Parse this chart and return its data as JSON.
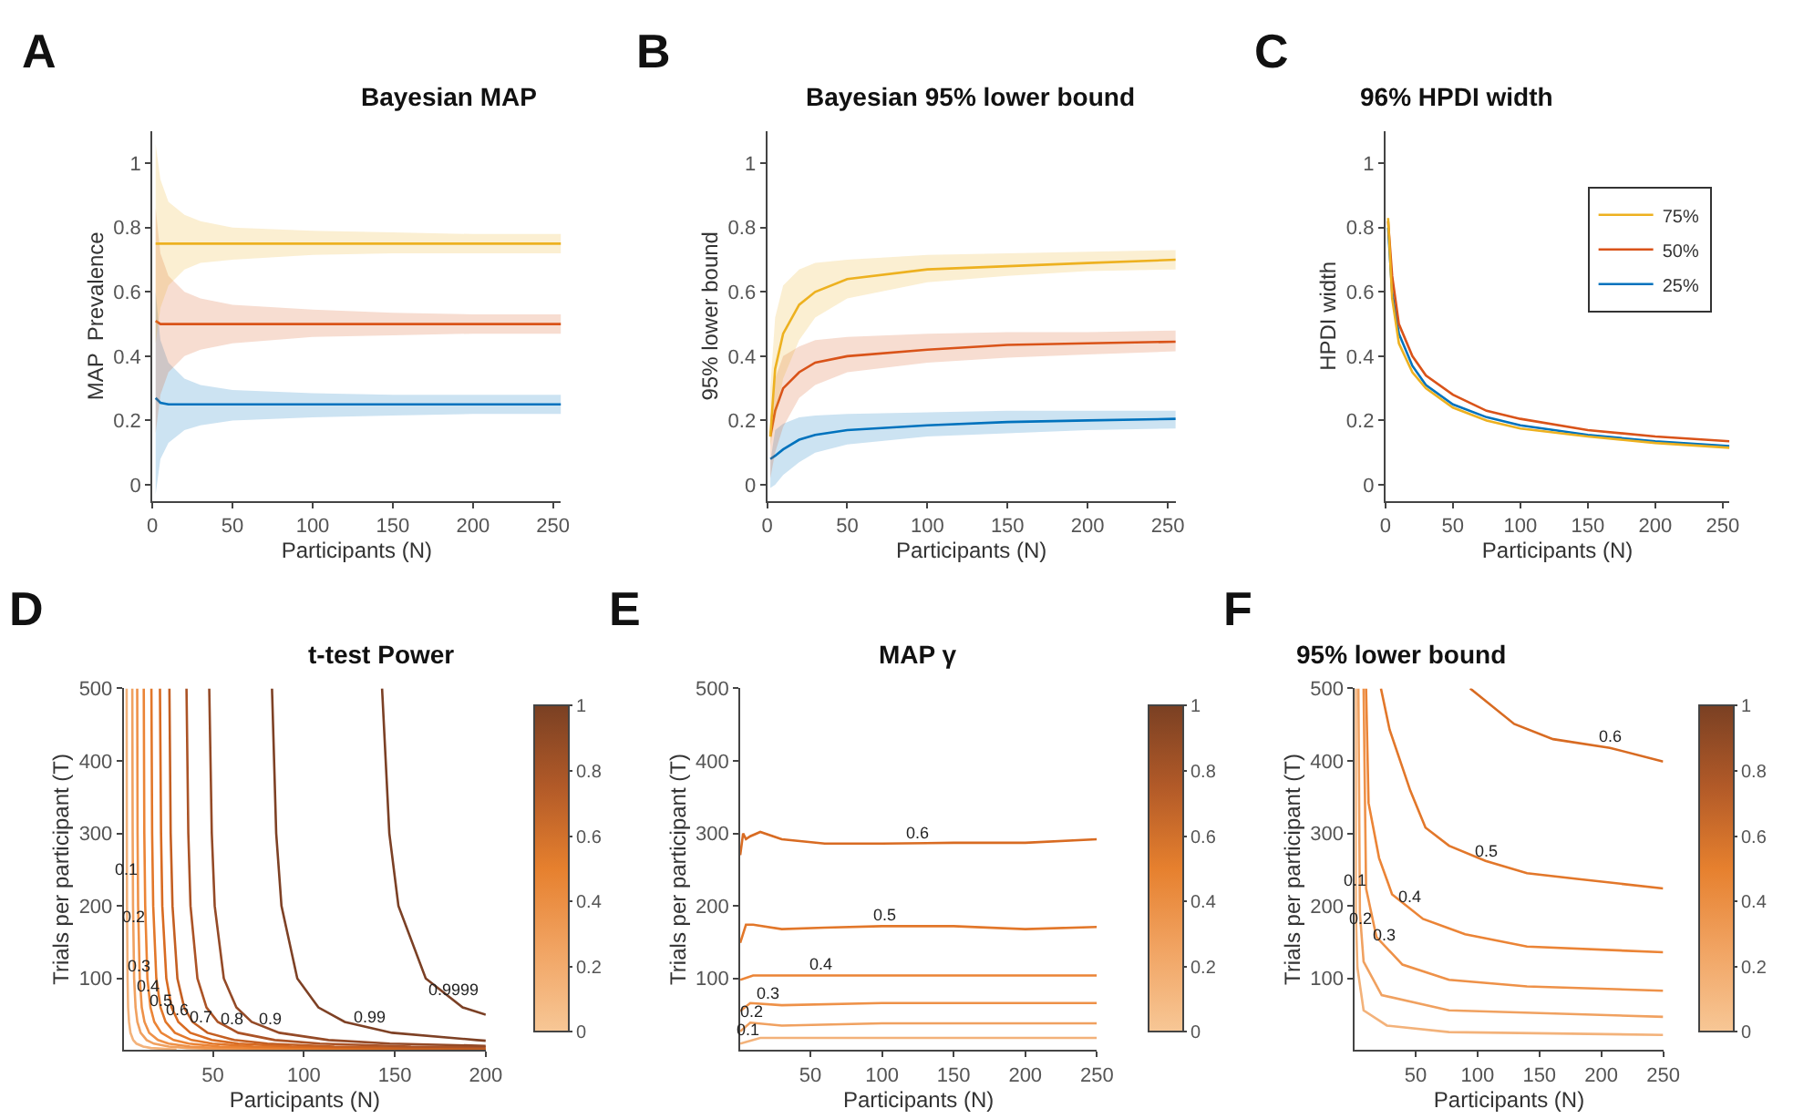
{
  "chart_data": [
    {
      "type": "line",
      "title": "Bayesian MAP",
      "xlabel": "Participants (N)",
      "ylabel": "MAP  Prevalence",
      "annotations": [
        "A"
      ],
      "x": [
        2,
        5,
        10,
        20,
        30,
        50,
        100,
        150,
        200,
        255
      ],
      "xlim": [
        0,
        255
      ],
      "ylim": [
        -0.05,
        1.1
      ],
      "xticks": [
        0,
        50,
        100,
        150,
        200,
        250
      ],
      "yticks": [
        0,
        0.2,
        0.4,
        0.6,
        0.8,
        1
      ],
      "grid": false,
      "legend": false,
      "series": [
        {
          "color": "#0072bd",
          "values": [
            0.27,
            0.255,
            0.25,
            0.25,
            0.25,
            0.25,
            0.25,
            0.25,
            0.25,
            0.25
          ],
          "lower": [
            -0.03,
            0.08,
            0.13,
            0.17,
            0.185,
            0.2,
            0.21,
            0.215,
            0.22,
            0.22
          ],
          "upper": [
            0.6,
            0.45,
            0.38,
            0.33,
            0.31,
            0.295,
            0.285,
            0.28,
            0.28,
            0.28
          ]
        },
        {
          "color": "#d95319",
          "values": [
            0.51,
            0.5,
            0.5,
            0.5,
            0.5,
            0.5,
            0.5,
            0.5,
            0.5,
            0.5
          ],
          "lower": [
            0.16,
            0.28,
            0.35,
            0.4,
            0.42,
            0.44,
            0.46,
            0.465,
            0.47,
            0.47
          ],
          "upper": [
            0.86,
            0.72,
            0.65,
            0.6,
            0.58,
            0.56,
            0.545,
            0.535,
            0.53,
            0.53
          ]
        },
        {
          "color": "#edb120",
          "values": [
            0.75,
            0.75,
            0.75,
            0.75,
            0.75,
            0.75,
            0.75,
            0.75,
            0.75,
            0.75
          ],
          "lower": [
            0.44,
            0.55,
            0.62,
            0.67,
            0.69,
            0.7,
            0.715,
            0.72,
            0.72,
            0.72
          ],
          "upper": [
            1.06,
            0.95,
            0.88,
            0.84,
            0.82,
            0.8,
            0.79,
            0.785,
            0.78,
            0.78
          ]
        }
      ]
    },
    {
      "type": "line",
      "title": "Bayesian 95% lower bound",
      "xlabel": "Participants (N)",
      "ylabel": "95% lower bound",
      "annotations": [
        "B"
      ],
      "x": [
        2,
        5,
        10,
        20,
        30,
        50,
        100,
        150,
        200,
        255
      ],
      "xlim": [
        0,
        255
      ],
      "ylim": [
        -0.05,
        1.1
      ],
      "xticks": [
        0,
        50,
        100,
        150,
        200,
        250
      ],
      "yticks": [
        0,
        0.2,
        0.4,
        0.6,
        0.8,
        1
      ],
      "grid": false,
      "legend": false,
      "series": [
        {
          "color": "#0072bd",
          "values": [
            0.08,
            0.09,
            0.11,
            0.14,
            0.155,
            0.17,
            0.185,
            0.195,
            0.2,
            0.205
          ],
          "lower": [
            -0.01,
            0.0,
            0.03,
            0.07,
            0.1,
            0.125,
            0.15,
            0.16,
            0.17,
            0.175
          ],
          "upper": [
            0.07,
            0.17,
            0.19,
            0.21,
            0.215,
            0.22,
            0.225,
            0.23,
            0.23,
            0.23
          ]
        },
        {
          "color": "#d95319",
          "values": [
            0.15,
            0.23,
            0.3,
            0.35,
            0.38,
            0.4,
            0.42,
            0.435,
            0.44,
            0.445
          ],
          "lower": [
            0.02,
            0.1,
            0.18,
            0.27,
            0.31,
            0.35,
            0.38,
            0.395,
            0.405,
            0.415
          ],
          "upper": [
            0.2,
            0.33,
            0.4,
            0.43,
            0.45,
            0.46,
            0.47,
            0.475,
            0.475,
            0.48
          ]
        },
        {
          "color": "#edb120",
          "values": [
            0.15,
            0.36,
            0.47,
            0.56,
            0.6,
            0.64,
            0.67,
            0.68,
            0.69,
            0.7
          ],
          "lower": [
            0.12,
            0.2,
            0.33,
            0.45,
            0.52,
            0.58,
            0.63,
            0.65,
            0.665,
            0.67
          ],
          "upper": [
            0.3,
            0.52,
            0.62,
            0.67,
            0.69,
            0.7,
            0.715,
            0.72,
            0.725,
            0.73
          ]
        }
      ]
    },
    {
      "type": "line",
      "title": "96% HPDI width",
      "xlabel": "Participants (N)",
      "ylabel": "HPDI width",
      "annotations": [
        "C"
      ],
      "x": [
        2,
        5,
        10,
        20,
        30,
        50,
        75,
        100,
        150,
        200,
        255
      ],
      "xlim": [
        0,
        255
      ],
      "ylim": [
        -0.05,
        1.1
      ],
      "xticks": [
        0,
        50,
        100,
        150,
        200,
        250
      ],
      "yticks": [
        0,
        0.2,
        0.4,
        0.6,
        0.8,
        1
      ],
      "grid": false,
      "legend": "top right",
      "series": [
        {
          "name": "25%",
          "color": "#0072bd",
          "values": [
            0.8,
            0.6,
            0.47,
            0.37,
            0.31,
            0.25,
            0.21,
            0.185,
            0.155,
            0.135,
            0.12
          ]
        },
        {
          "name": "50%",
          "color": "#d95319",
          "values": [
            0.82,
            0.65,
            0.5,
            0.4,
            0.34,
            0.28,
            0.23,
            0.205,
            0.17,
            0.15,
            0.135
          ]
        },
        {
          "name": "75%",
          "color": "#edb120",
          "values": [
            0.83,
            0.58,
            0.44,
            0.35,
            0.3,
            0.24,
            0.2,
            0.175,
            0.15,
            0.13,
            0.115
          ]
        }
      ]
    },
    {
      "type": "line",
      "title": "t-test Power",
      "xlabel": "Participants (N)",
      "ylabel": "Trials per participant (T)",
      "annotations": [
        "D"
      ],
      "xlim": [
        1,
        200
      ],
      "ylim": [
        1,
        500
      ],
      "xticks": [
        50,
        100,
        150,
        200
      ],
      "yticks": [
        100,
        200,
        300,
        400,
        500
      ],
      "clim": [
        0,
        1
      ],
      "cticks": [
        0,
        0.2,
        0.4,
        0.6,
        0.8,
        1
      ],
      "grid": false,
      "legend": false,
      "series": [
        {
          "name": "0.1",
          "color": "#f3b27a",
          "x": [
            2.6,
            2.7,
            2.8,
            3.1,
            3.4,
            3.9,
            4.7,
            6.2,
            8,
            11.7,
            16,
            30
          ],
          "values": [
            500,
            300,
            200,
            100,
            60,
            40,
            25,
            15,
            10,
            6,
            4,
            2
          ]
        },
        {
          "name": "0.2",
          "color": "#f0a160",
          "x": [
            5.7,
            5.9,
            6.1,
            6.7,
            7.5,
            8.5,
            10.3,
            13.6,
            17.6,
            25.7,
            35.8,
            66
          ],
          "values": [
            500,
            300,
            200,
            100,
            60,
            40,
            25,
            15,
            10,
            6,
            4,
            2
          ]
        },
        {
          "name": "0.3",
          "color": "#ee9148",
          "x": [
            8.4,
            8.6,
            8.9,
            9.8,
            10.9,
            12.4,
            15,
            19.8,
            25.6,
            37.4,
            52,
            96
          ],
          "values": [
            500,
            300,
            200,
            100,
            60,
            40,
            25,
            15,
            10,
            6,
            4,
            2
          ]
        },
        {
          "name": "0.4",
          "color": "#eb8436",
          "x": [
            12,
            12.3,
            12.8,
            14,
            15.7,
            17.8,
            21.6,
            28.4,
            36.8,
            53.7,
            74.8,
            138
          ],
          "values": [
            500,
            300,
            200,
            100,
            60,
            40,
            25,
            15,
            10,
            6,
            4,
            2
          ]
        },
        {
          "name": "0.5",
          "color": "#e2772a",
          "x": [
            16.2,
            16.6,
            17.2,
            18.9,
            21.2,
            24,
            29.1,
            38.3,
            49.6,
            72.4,
            100.8,
            186
          ],
          "values": [
            500,
            300,
            200,
            100,
            60,
            40,
            25,
            15,
            10,
            6,
            4,
            2
          ]
        },
        {
          "name": "0.6",
          "color": "#d86b22",
          "x": [
            20.9,
            21.5,
            22.2,
            24.4,
            27.3,
            31,
            37.6,
            49.4,
            64,
            93.4,
            130,
            200
          ],
          "values": [
            500,
            300,
            200,
            100,
            60,
            40,
            25,
            15,
            10,
            6,
            4,
            2
          ]
        },
        {
          "name": "0.7",
          "color": "#c45f22",
          "x": [
            26.1,
            26.8,
            27.8,
            30.5,
            34.2,
            38.8,
            47,
            61.8,
            80,
            116.8,
            162.5,
            200
          ],
          "values": [
            500,
            300,
            200,
            100,
            60,
            40,
            25,
            15,
            10,
            6,
            4,
            3
          ]
        },
        {
          "name": "0.8",
          "color": "#ab5326",
          "x": [
            35.5,
            36.5,
            37.7,
            41.5,
            46.5,
            52.7,
            63.9,
            84,
            108.8,
            158.8,
            200
          ],
          "values": [
            500,
            300,
            200,
            100,
            60,
            40,
            25,
            15,
            10,
            6,
            5
          ]
        },
        {
          "name": "0.9",
          "color": "#944a27",
          "x": [
            48,
            49.4,
            51,
            56,
            62.9,
            71.3,
            86.5,
            113.6,
            147.2,
            200
          ],
          "values": [
            500,
            300,
            200,
            100,
            60,
            40,
            25,
            15,
            10,
            7
          ]
        },
        {
          "name": "0.99",
          "color": "#7e4125",
          "x": [
            82.5,
            84.8,
            87.7,
            96.4,
            108,
            122.5,
            148.5,
            195,
            200
          ],
          "values": [
            500,
            300,
            200,
            100,
            60,
            40,
            25,
            15,
            14
          ]
        },
        {
          "name": "0.9999",
          "color": "#7b4025",
          "x": [
            143,
            147,
            152,
            167,
            187.3,
            200
          ],
          "values": [
            500,
            300,
            200,
            100,
            60,
            50
          ]
        }
      ]
    },
    {
      "type": "line",
      "title": "MAP γ",
      "xlabel": "Participants (N)",
      "ylabel": "Trials per participant (T)",
      "annotations": [
        "E"
      ],
      "xlim": [
        1,
        250
      ],
      "ylim": [
        1,
        500
      ],
      "xticks": [
        50,
        100,
        150,
        200,
        250
      ],
      "yticks": [
        100,
        200,
        300,
        400,
        500
      ],
      "clim": [
        0,
        1
      ],
      "cticks": [
        0,
        0.2,
        0.4,
        0.6,
        0.8,
        1
      ],
      "grid": false,
      "legend": false,
      "series": [
        {
          "name": "0.1",
          "color": "#f3b27a",
          "x": [
            1,
            15,
            100,
            250
          ],
          "values": [
            10,
            18,
            18,
            18
          ]
        },
        {
          "name": "0.2",
          "color": "#f0a160",
          "x": [
            1,
            8,
            30,
            100,
            250
          ],
          "values": [
            27,
            39,
            35,
            38,
            38
          ]
        },
        {
          "name": "0.3",
          "color": "#ee9148",
          "x": [
            1,
            8,
            30,
            100,
            250
          ],
          "values": [
            55,
            66,
            63,
            66,
            66
          ]
        },
        {
          "name": "0.4",
          "color": "#eb8436",
          "x": [
            1,
            10,
            100,
            250
          ],
          "values": [
            98,
            104,
            104,
            104
          ]
        },
        {
          "name": "0.5",
          "color": "#e2772a",
          "x": [
            1,
            5,
            10,
            30,
            60,
            100,
            150,
            200,
            250
          ],
          "values": [
            149,
            174,
            174,
            168,
            170,
            172,
            172,
            168,
            171
          ]
        },
        {
          "name": "0.6",
          "color": "#d86b22",
          "x": [
            1,
            3,
            5,
            8,
            15,
            30,
            60,
            100,
            150,
            200,
            250
          ],
          "values": [
            270,
            300,
            292,
            296,
            302,
            292,
            286,
            286,
            287,
            287,
            292
          ]
        }
      ]
    },
    {
      "type": "line",
      "title": "95% lower bound",
      "xlabel": "Participants (N)",
      "ylabel": "Trials per participant (T)",
      "annotations": [
        "F"
      ],
      "xlim": [
        1,
        250
      ],
      "ylim": [
        1,
        500
      ],
      "xticks": [
        50,
        100,
        150,
        200,
        250
      ],
      "yticks": [
        100,
        200,
        300,
        400,
        500
      ],
      "clim": [
        0,
        1
      ],
      "cticks": [
        0,
        0.2,
        0.4,
        0.6,
        0.8,
        1
      ],
      "grid": false,
      "legend": false,
      "series": [
        {
          "name": "0.1",
          "color": "#f3b27a",
          "x": [
            1.7,
            1.7,
            3,
            8,
            26.8,
            77,
            250
          ],
          "values": [
            500,
            190,
            115,
            56,
            35,
            26,
            22
          ]
        },
        {
          "name": "0.2",
          "color": "#f0a160",
          "x": [
            3.8,
            5,
            8,
            22.6,
            77,
            250
          ],
          "values": [
            500,
            190,
            123,
            77,
            56,
            47
          ]
        },
        {
          "name": "0.3",
          "color": "#ee9148",
          "x": [
            8,
            10,
            18.4,
            39.4,
            77,
            140,
            250
          ],
          "values": [
            500,
            224,
            157,
            119,
            98,
            89,
            83
          ]
        },
        {
          "name": "0.4",
          "color": "#eb8436",
          "x": [
            10,
            12,
            20.5,
            31,
            56,
            90,
            140,
            250
          ],
          "values": [
            500,
            342,
            266,
            216,
            182,
            161,
            144,
            136
          ]
        },
        {
          "name": "0.5",
          "color": "#e2772a",
          "x": [
            22,
            29,
            45.7,
            58,
            77,
            106.5,
            140,
            182,
            250
          ],
          "values": [
            500,
            443,
            359,
            308,
            283,
            262,
            245,
            237,
            224
          ]
        },
        {
          "name": "0.6",
          "color": "#d86b22",
          "x": [
            94,
            129.6,
            161,
            207,
            250
          ],
          "values": [
            500,
            451,
            430,
            418,
            399
          ]
        }
      ]
    }
  ]
}
